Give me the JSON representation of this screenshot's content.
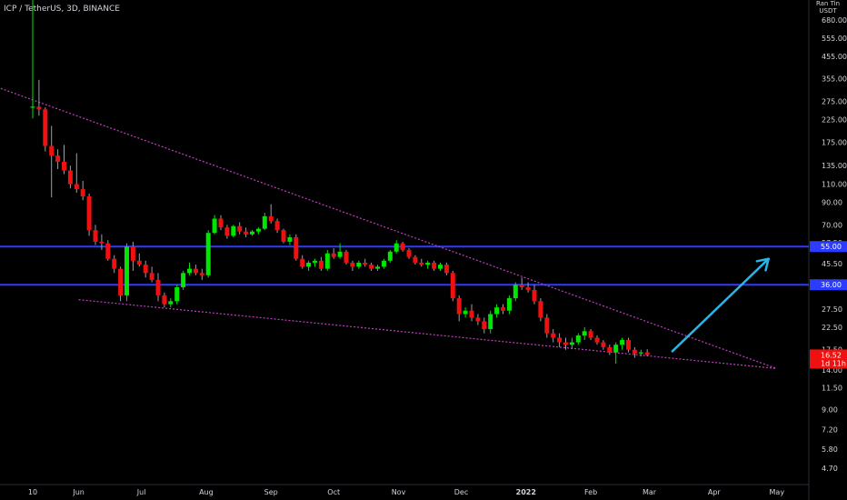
{
  "header": {
    "title": "ICP / TetherUS, 3D, BINANCE"
  },
  "price_scale": {
    "unit_line1": "Ran Tin",
    "unit_line2": "USDT"
  },
  "colors": {
    "background": "#000000",
    "up_candle": "#00e600",
    "down_candle": "#f01010",
    "horizontal_line": "#2b3cff",
    "trendline": "#c040c0",
    "arrow": "#29b6e6",
    "price_tag": "#f01010"
  },
  "chart_data": {
    "type": "candlestick",
    "scale": "log",
    "title": "ICP / TetherUS, 3D, BINANCE",
    "y_ticks": [
      {
        "value": 680,
        "label": "680.00"
      },
      {
        "value": 555,
        "label": "555.00"
      },
      {
        "value": 455,
        "label": "455.00"
      },
      {
        "value": 355,
        "label": "355.00"
      },
      {
        "value": 275,
        "label": "275.00"
      },
      {
        "value": 225,
        "label": "225.00"
      },
      {
        "value": 175,
        "label": "175.00"
      },
      {
        "value": 135,
        "label": "135.00"
      },
      {
        "value": 110,
        "label": "110.00"
      },
      {
        "value": 90,
        "label": "90.00"
      },
      {
        "value": 70,
        "label": "70.00"
      },
      {
        "value": 57.5,
        "label": "57.50"
      },
      {
        "value": 45.5,
        "label": "45.50"
      },
      {
        "value": 27.5,
        "label": "27.50"
      },
      {
        "value": 22.5,
        "label": "22.50"
      },
      {
        "value": 17.5,
        "label": "17.50"
      },
      {
        "value": 14,
        "label": "14.00"
      },
      {
        "value": 11.5,
        "label": "11.50"
      },
      {
        "value": 9,
        "label": "9.00"
      },
      {
        "value": 7.2,
        "label": "7.20"
      },
      {
        "value": 5.8,
        "label": "5.80"
      },
      {
        "value": 4.7,
        "label": "4.70"
      }
    ],
    "x_ticks": [
      {
        "date": "2021-05-10",
        "label": "10",
        "bold": false
      },
      {
        "date": "2021-06-01",
        "label": "Jun",
        "bold": false
      },
      {
        "date": "2021-07-01",
        "label": "Jul",
        "bold": false
      },
      {
        "date": "2021-08-01",
        "label": "Aug",
        "bold": false
      },
      {
        "date": "2021-09-01",
        "label": "Sep",
        "bold": false
      },
      {
        "date": "2021-10-01",
        "label": "Oct",
        "bold": false
      },
      {
        "date": "2021-11-01",
        "label": "Nov",
        "bold": false
      },
      {
        "date": "2021-12-01",
        "label": "Dec",
        "bold": false
      },
      {
        "date": "2022-01-01",
        "label": "2022",
        "bold": true
      },
      {
        "date": "2022-02-01",
        "label": "Feb",
        "bold": false
      },
      {
        "date": "2022-03-01",
        "label": "Mar",
        "bold": false
      },
      {
        "date": "2022-04-01",
        "label": "Apr",
        "bold": false
      },
      {
        "date": "2022-05-01",
        "label": "May",
        "bold": false
      }
    ],
    "x_range": [
      "2021-05-10",
      "2022-05-01"
    ],
    "candles": [
      [
        "2021-05-10",
        257,
        1350,
        228,
        260
      ],
      [
        "2021-05-13",
        260,
        350,
        235,
        252
      ],
      [
        "2021-05-16",
        252,
        258,
        158,
        168
      ],
      [
        "2021-05-19",
        168,
        210,
        95,
        151
      ],
      [
        "2021-05-22",
        151,
        162,
        130,
        141
      ],
      [
        "2021-05-25",
        141,
        170,
        123,
        128
      ],
      [
        "2021-05-28",
        128,
        135,
        105,
        110
      ],
      [
        "2021-05-31",
        110,
        155,
        100,
        104
      ],
      [
        "2021-06-03",
        104,
        114,
        92,
        96
      ],
      [
        "2021-06-06",
        96,
        99,
        62,
        66
      ],
      [
        "2021-06-09",
        66,
        70,
        56,
        58
      ],
      [
        "2021-06-12",
        58,
        63,
        53,
        57
      ],
      [
        "2021-06-15",
        57,
        59,
        47,
        48
      ],
      [
        "2021-06-18",
        48,
        50,
        41,
        43
      ],
      [
        "2021-06-21",
        43,
        44,
        30,
        32
      ],
      [
        "2021-06-24",
        32,
        57,
        30,
        55
      ],
      [
        "2021-06-27",
        55,
        58,
        42,
        47
      ],
      [
        "2021-06-30",
        47,
        51,
        44,
        45
      ],
      [
        "2021-07-03",
        45,
        47,
        39,
        41
      ],
      [
        "2021-07-06",
        41,
        44,
        37,
        38
      ],
      [
        "2021-07-09",
        38,
        41,
        30,
        32
      ],
      [
        "2021-07-12",
        32,
        33,
        28,
        29
      ],
      [
        "2021-07-15",
        29,
        31,
        28,
        30
      ],
      [
        "2021-07-18",
        30,
        36,
        29,
        35
      ],
      [
        "2021-07-21",
        35,
        42,
        34,
        41
      ],
      [
        "2021-07-24",
        41,
        46,
        40,
        43
      ],
      [
        "2021-07-27",
        43,
        45,
        40,
        41
      ],
      [
        "2021-07-30",
        41,
        43,
        38,
        40
      ],
      [
        "2021-08-02",
        40,
        66,
        39,
        64
      ],
      [
        "2021-08-05",
        64,
        78,
        63,
        75
      ],
      [
        "2021-08-08",
        75,
        78,
        66,
        68
      ],
      [
        "2021-08-11",
        68,
        70,
        60,
        62
      ],
      [
        "2021-08-14",
        62,
        70,
        61,
        69
      ],
      [
        "2021-08-17",
        69,
        72,
        63,
        65
      ],
      [
        "2021-08-20",
        65,
        68,
        61,
        63
      ],
      [
        "2021-08-23",
        63,
        66,
        62,
        65
      ],
      [
        "2021-08-26",
        65,
        68,
        63,
        67
      ],
      [
        "2021-08-29",
        67,
        80,
        66,
        77
      ],
      [
        "2021-09-01",
        77,
        88,
        71,
        73
      ],
      [
        "2021-09-04",
        73,
        75,
        64,
        66
      ],
      [
        "2021-09-07",
        66,
        67,
        57,
        58
      ],
      [
        "2021-09-10",
        58,
        63,
        56,
        61
      ],
      [
        "2021-09-13",
        61,
        63,
        47,
        48
      ],
      [
        "2021-09-16",
        48,
        50,
        43,
        44
      ],
      [
        "2021-09-19",
        44,
        47,
        42,
        46
      ],
      [
        "2021-09-22",
        46,
        48,
        44,
        47
      ],
      [
        "2021-09-25",
        47,
        49,
        42,
        43
      ],
      [
        "2021-09-28",
        43,
        53,
        42,
        51
      ],
      [
        "2021-10-01",
        51,
        54,
        48,
        49
      ],
      [
        "2021-10-04",
        49,
        57,
        48,
        52
      ],
      [
        "2021-10-07",
        52,
        53,
        45,
        46
      ],
      [
        "2021-10-10",
        46,
        47,
        42,
        44
      ],
      [
        "2021-10-13",
        44,
        47,
        43,
        46
      ],
      [
        "2021-10-16",
        46,
        48,
        44,
        45
      ],
      [
        "2021-10-19",
        45,
        46,
        42,
        43
      ],
      [
        "2021-10-22",
        43,
        45,
        42,
        44
      ],
      [
        "2021-10-25",
        44,
        48,
        43,
        47
      ],
      [
        "2021-10-28",
        47,
        53,
        46,
        52
      ],
      [
        "2021-10-31",
        52,
        59,
        51,
        57
      ],
      [
        "2021-11-03",
        57,
        58,
        52,
        53
      ],
      [
        "2021-11-06",
        53,
        54,
        48,
        49
      ],
      [
        "2021-11-09",
        49,
        50,
        45,
        46
      ],
      [
        "2021-11-12",
        46,
        48,
        44,
        45
      ],
      [
        "2021-11-15",
        45,
        47,
        43,
        46
      ],
      [
        "2021-11-18",
        46,
        47,
        42,
        43
      ],
      [
        "2021-11-21",
        43,
        46,
        42,
        45
      ],
      [
        "2021-11-24",
        45,
        46,
        40,
        41
      ],
      [
        "2021-11-27",
        41,
        42,
        30,
        31
      ],
      [
        "2021-11-30",
        31,
        32,
        24,
        26
      ],
      [
        "2021-12-03",
        26,
        28,
        25,
        27
      ],
      [
        "2021-12-06",
        27,
        29,
        24,
        25
      ],
      [
        "2021-12-09",
        25,
        26,
        23,
        24
      ],
      [
        "2021-12-12",
        24,
        25,
        21,
        22
      ],
      [
        "2021-12-15",
        22,
        27,
        21,
        26
      ],
      [
        "2021-12-18",
        26,
        29,
        25,
        28
      ],
      [
        "2021-12-21",
        28,
        29,
        26,
        27
      ],
      [
        "2021-12-24",
        27,
        32,
        26,
        31
      ],
      [
        "2021-12-27",
        31,
        37,
        30,
        36
      ],
      [
        "2021-12-30",
        36,
        39,
        34,
        35
      ],
      [
        "2022-01-02",
        35,
        37,
        33,
        34
      ],
      [
        "2022-01-05",
        34,
        36,
        29,
        30
      ],
      [
        "2022-01-08",
        30,
        31,
        24,
        25
      ],
      [
        "2022-01-11",
        25,
        26,
        20,
        21
      ],
      [
        "2022-01-14",
        21,
        22,
        19,
        20
      ],
      [
        "2022-01-17",
        20,
        21,
        18,
        19
      ],
      [
        "2022-01-20",
        19,
        20,
        17.5,
        18.5
      ],
      [
        "2022-01-23",
        18.5,
        20,
        17.6,
        19
      ],
      [
        "2022-01-26",
        19,
        21,
        18.5,
        20.5
      ],
      [
        "2022-01-29",
        20.5,
        22.5,
        19.5,
        21.5
      ],
      [
        "2022-02-01",
        21.5,
        22,
        19.5,
        20
      ],
      [
        "2022-02-04",
        20,
        20.5,
        18.5,
        19
      ],
      [
        "2022-02-07",
        19,
        19.5,
        17.5,
        18
      ],
      [
        "2022-02-10",
        18,
        18.5,
        16.5,
        17
      ],
      [
        "2022-02-13",
        17,
        19,
        15,
        18.5
      ],
      [
        "2022-02-16",
        18.5,
        20,
        17.5,
        19.5
      ],
      [
        "2022-02-19",
        19.5,
        20,
        17,
        17.5
      ],
      [
        "2022-02-22",
        17.5,
        18,
        16,
        16.8
      ],
      [
        "2022-02-25",
        16.8,
        17.5,
        16.2,
        17
      ],
      [
        "2022-02-28",
        17,
        17.6,
        16.3,
        16.52
      ]
    ],
    "horizontal_lines": [
      {
        "value": 55.0,
        "label": "55.00"
      },
      {
        "value": 36.0,
        "label": "36.00"
      }
    ],
    "trendlines": [
      {
        "from": [
          "2021-04-10",
          360
        ],
        "to": [
          "2022-05-01",
          14.2
        ]
      },
      {
        "from": [
          "2021-06-01",
          30.5
        ],
        "to": [
          "2022-05-01",
          14.2
        ]
      }
    ],
    "projection_arrow": {
      "from": [
        "2022-03-12",
        17.2
      ],
      "to": [
        "2022-04-27",
        48
      ]
    },
    "last_price": {
      "value": 16.52,
      "label": "16.52",
      "countdown": "1d 11h"
    }
  }
}
